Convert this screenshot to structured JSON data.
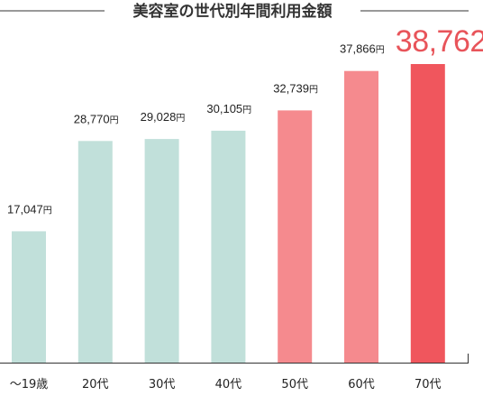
{
  "chart_data": {
    "type": "bar",
    "title": "美容室の世代別年間利用金額",
    "unit": "円",
    "categories": [
      "〜19歳",
      "20代",
      "30代",
      "40代",
      "50代",
      "60代",
      "70代"
    ],
    "values": [
      17047,
      28770,
      29028,
      30105,
      32739,
      37866,
      38762
    ],
    "value_labels": [
      "17,047",
      "28,770",
      "29,028",
      "30,105",
      "32,739",
      "37,866",
      "38,762"
    ],
    "highlight_index": 6,
    "ylim": [
      0,
      40000
    ],
    "grid": false,
    "legend": "none",
    "colors": {
      "young": "#c1e0da",
      "older": "#f58a8e",
      "highlight": "#f0565d",
      "highlight_text": "#e8545a",
      "axis": "#333333"
    },
    "bar_color_groups": [
      "young",
      "young",
      "young",
      "young",
      "older",
      "older",
      "highlight"
    ]
  }
}
